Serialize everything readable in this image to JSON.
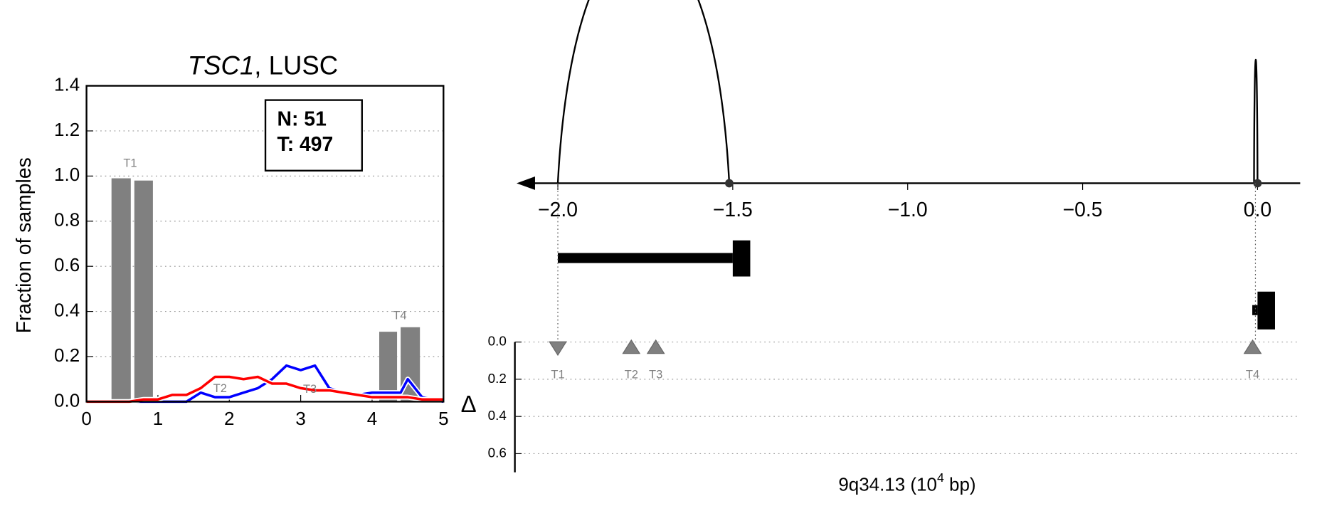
{
  "chart_data": [
    {
      "type": "bar",
      "title": [
        "TSC1",
        ", LUSC"
      ],
      "ylabel": "Fraction of samples",
      "xlim": [
        0,
        5
      ],
      "xticks": [
        0,
        1,
        2,
        3,
        4,
        5
      ],
      "ylim": [
        0,
        1.4
      ],
      "yticks": [
        {
          "value": 0,
          "label": "0.0"
        },
        {
          "value": 0.2,
          "label": "0.2"
        },
        {
          "value": 0.4,
          "label": "0.4"
        },
        {
          "value": 0.6,
          "label": "0.6"
        },
        {
          "value": 0.8,
          "label": "0.8"
        },
        {
          "value": 1,
          "label": "1.0"
        },
        {
          "value": 1.2,
          "label": "1.2"
        },
        {
          "value": 1.4,
          "label": "1.4"
        }
      ],
      "grid": true,
      "bars": {
        "color": "#808080",
        "x0": [
          0.35,
          0.67,
          4.1,
          4.4
        ],
        "x1": [
          0.62,
          0.93,
          4.35,
          4.67
        ],
        "values": [
          0.99,
          0.98,
          0.31,
          0.33
        ]
      },
      "x": [
        0,
        0.2,
        0.4,
        0.6,
        0.8,
        1,
        1.2,
        1.4,
        1.6,
        1.8,
        2,
        2.2,
        2.4,
        2.6,
        2.8,
        3,
        3.2,
        3.4,
        3.6,
        3.8,
        4,
        4.2,
        4.4,
        4.5,
        4.7,
        5
      ],
      "series": [
        {
          "color": "#0000ff",
          "values": [
            0,
            0,
            0,
            0,
            0,
            0,
            0,
            0,
            0.04,
            0.02,
            0.02,
            0.04,
            0.06,
            0.1,
            0.16,
            0.14,
            0.16,
            0.06,
            0.04,
            0.03,
            0.04,
            0.04,
            0.04,
            0.1,
            0.02,
            0
          ]
        },
        {
          "color": "#ff0000",
          "values": [
            0,
            0,
            0,
            0,
            0.01,
            0.01,
            0.03,
            0.03,
            0.06,
            0.11,
            0.11,
            0.1,
            0.11,
            0.08,
            0.08,
            0.06,
            0.05,
            0.05,
            0.04,
            0.03,
            0.02,
            0.02,
            0.02,
            0.02,
            0.01,
            0.01
          ]
        }
      ],
      "bar_labels": [
        "T1",
        "T2",
        "T3",
        "T4"
      ],
      "annotations": [
        "N: 51",
        "T: 497"
      ]
    },
    {
      "type": "arc",
      "xlim": [
        -2.118,
        0.122
      ],
      "xticks": [
        {
          "value": -2,
          "label": "−2.0"
        },
        {
          "value": -1.5,
          "label": "−1.5"
        },
        {
          "value": -1,
          "label": "−1.0"
        },
        {
          "value": -0.5,
          "label": "−0.5"
        },
        {
          "value": 0,
          "label": "0.0"
        }
      ],
      "arcs": {
        "start": [
          -2.0,
          -0.01
        ],
        "end": [
          -1.51,
          0.0
        ],
        "heights": [
          1.0,
          0.5
        ]
      },
      "genes": [
        {
          "start": -2.0,
          "end": -1.45,
          "exon_start": -1.5
        },
        {
          "start": -0.015,
          "end": 0.05,
          "exon_start": 0.0
        }
      ]
    },
    {
      "type": "scatter",
      "ylabel": "Δ",
      "xlabel": [
        "9q34.13 (10",
        "4",
        " bp)"
      ],
      "xlim": [
        -2.118,
        0.122
      ],
      "ylim": [
        0,
        0.7
      ],
      "yticks": [
        {
          "value": 0,
          "label": "0.0"
        },
        {
          "value": 0.2,
          "label": "0.2"
        },
        {
          "value": 0.4,
          "label": "0.4"
        },
        {
          "value": 0.6,
          "label": "0.6"
        }
      ],
      "points": {
        "color": "#808080",
        "x": [
          -2.0,
          -1.79,
          -1.72,
          -0.014
        ],
        "values": [
          0.03,
          0.03,
          0.03,
          0.03
        ],
        "labels": [
          "T1",
          "T2",
          "T3",
          "T4"
        ],
        "markers": [
          "down",
          "up",
          "up",
          "up"
        ]
      }
    }
  ]
}
